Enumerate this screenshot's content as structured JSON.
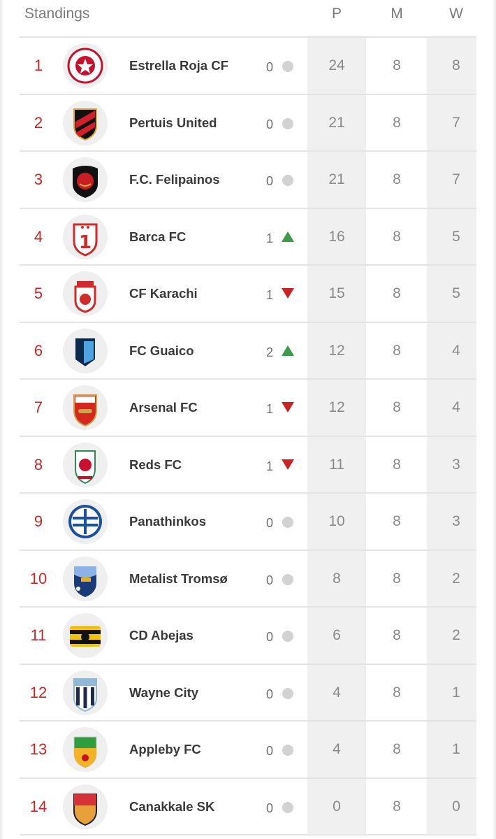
{
  "header": {
    "title": "Standings",
    "col_p": "P",
    "col_m": "M",
    "col_w": "W"
  },
  "colors": {
    "rank": "#c62828",
    "up": "#3c9a4a",
    "down": "#cc2222",
    "neutral": "#d2d2d2"
  },
  "rows": [
    {
      "rank": "1",
      "team": "Estrella Roja CF",
      "move": "0",
      "dir": "none",
      "p": "24",
      "m": "8",
      "w": "8",
      "crest": "crvena-star-crest-icon"
    },
    {
      "rank": "2",
      "team": "Pertuis United",
      "move": "0",
      "dir": "none",
      "p": "21",
      "m": "8",
      "w": "7",
      "crest": "red-black-stripe-shield-icon"
    },
    {
      "rank": "3",
      "team": "F.C. Felipainos",
      "move": "0",
      "dir": "none",
      "p": "21",
      "m": "8",
      "w": "7",
      "crest": "black-laurel-crest-icon"
    },
    {
      "rank": "4",
      "team": "Barca FC",
      "move": "1",
      "dir": "up",
      "p": "16",
      "m": "8",
      "w": "5",
      "crest": "number-one-shield-icon"
    },
    {
      "rank": "5",
      "team": "CF Karachi",
      "move": "1",
      "dir": "down",
      "p": "15",
      "m": "8",
      "w": "5",
      "crest": "red-crown-crest-icon"
    },
    {
      "rank": "6",
      "team": "FC Guaico",
      "move": "2",
      "dir": "up",
      "p": "12",
      "m": "8",
      "w": "4",
      "crest": "blue-geometric-crest-icon"
    },
    {
      "rank": "7",
      "team": "Arsenal FC",
      "move": "1",
      "dir": "down",
      "p": "12",
      "m": "8",
      "w": "4",
      "crest": "arsenal-cannon-crest-icon"
    },
    {
      "rank": "8",
      "team": "Reds FC",
      "move": "1",
      "dir": "down",
      "p": "11",
      "m": "8",
      "w": "3",
      "crest": "liverbird-crest-icon"
    },
    {
      "rank": "9",
      "team": "Panathinkos",
      "move": "0",
      "dir": "none",
      "p": "10",
      "m": "8",
      "w": "3",
      "crest": "greek-flag-crest-icon"
    },
    {
      "rank": "10",
      "team": "Metalist Tromsø",
      "move": "0",
      "dir": "none",
      "p": "8",
      "m": "8",
      "w": "2",
      "crest": "blue-shield-crest-icon"
    },
    {
      "rank": "11",
      "team": "CD Abejas",
      "move": "0",
      "dir": "none",
      "p": "6",
      "m": "8",
      "w": "2",
      "crest": "bee-stripe-crest-icon"
    },
    {
      "rank": "12",
      "team": "Wayne City",
      "move": "0",
      "dir": "none",
      "p": "4",
      "m": "8",
      "w": "1",
      "crest": "navy-stripe-shield-icon"
    },
    {
      "rank": "13",
      "team": "Appleby FC",
      "move": "0",
      "dir": "none",
      "p": "4",
      "m": "8",
      "w": "1",
      "crest": "green-lion-shield-icon"
    },
    {
      "rank": "14",
      "team": "Canakkale SK",
      "move": "0",
      "dir": "none",
      "p": "0",
      "m": "8",
      "w": "0",
      "crest": "red-orange-shield-icon"
    }
  ]
}
